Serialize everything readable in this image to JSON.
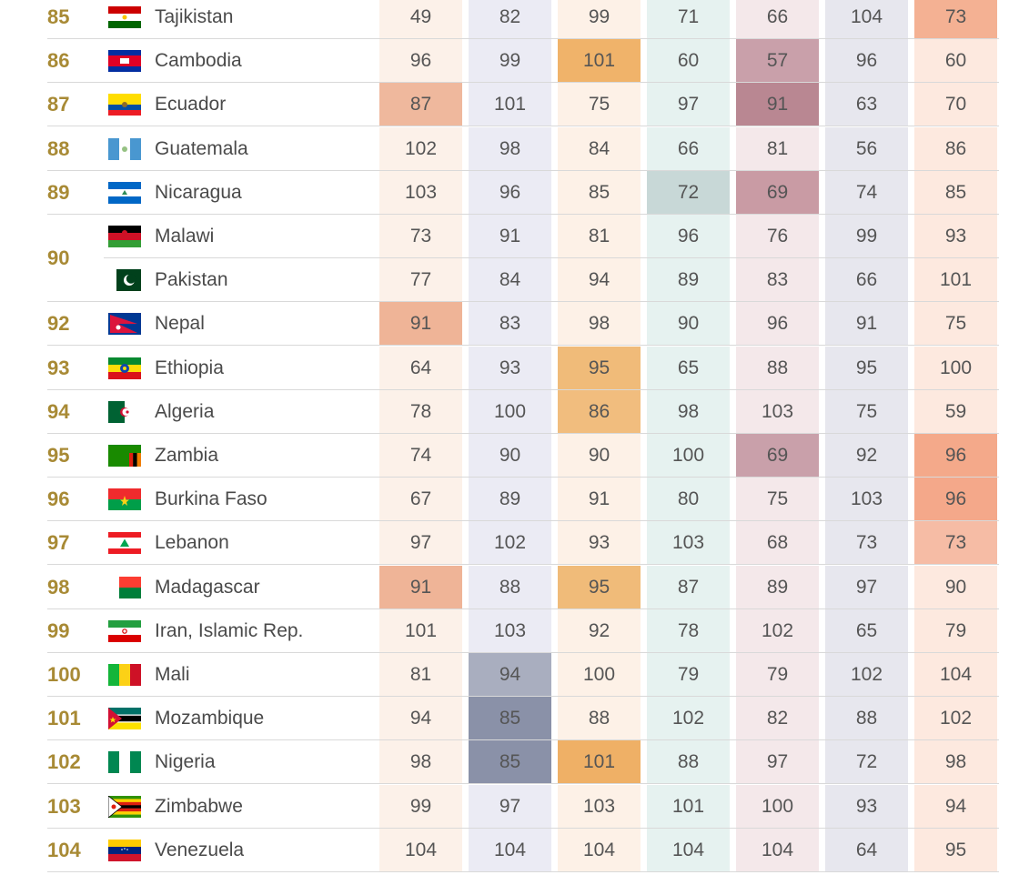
{
  "table": {
    "rows": [
      {
        "rank": "85",
        "country": "Tajikistan",
        "flag": "tajikistan-flag-icon",
        "values": [
          "49",
          "82",
          "99",
          "71",
          "66",
          "104",
          "73"
        ]
      },
      {
        "rank": "86",
        "country": "Cambodia",
        "flag": "cambodia-flag-icon",
        "values": [
          "96",
          "99",
          "101",
          "60",
          "57",
          "96",
          "60"
        ]
      },
      {
        "rank": "87",
        "country": "Ecuador",
        "flag": "ecuador-flag-icon",
        "values": [
          "87",
          "101",
          "75",
          "97",
          "91",
          "63",
          "70"
        ]
      },
      {
        "rank": "88",
        "country": "Guatemala",
        "flag": "guatemala-flag-icon",
        "values": [
          "102",
          "98",
          "84",
          "66",
          "81",
          "56",
          "86"
        ]
      },
      {
        "rank": "89",
        "country": "Nicaragua",
        "flag": "nicaragua-flag-icon",
        "values": [
          "103",
          "96",
          "85",
          "72",
          "69",
          "74",
          "85"
        ]
      },
      {
        "rank": "90",
        "country": "Malawi",
        "flag": "malawi-flag-icon",
        "values": [
          "73",
          "91",
          "81",
          "96",
          "76",
          "99",
          "93"
        ]
      },
      {
        "rank": "",
        "country": "Pakistan",
        "flag": "pakistan-flag-icon",
        "values": [
          "77",
          "84",
          "94",
          "89",
          "83",
          "66",
          "101"
        ]
      },
      {
        "rank": "92",
        "country": "Nepal",
        "flag": "nepal-flag-icon",
        "values": [
          "91",
          "83",
          "98",
          "90",
          "96",
          "91",
          "75"
        ]
      },
      {
        "rank": "93",
        "country": "Ethiopia",
        "flag": "ethiopia-flag-icon",
        "values": [
          "64",
          "93",
          "95",
          "65",
          "88",
          "95",
          "100"
        ]
      },
      {
        "rank": "94",
        "country": "Algeria",
        "flag": "algeria-flag-icon",
        "values": [
          "78",
          "100",
          "86",
          "98",
          "103",
          "75",
          "59"
        ]
      },
      {
        "rank": "95",
        "country": "Zambia",
        "flag": "zambia-flag-icon",
        "values": [
          "74",
          "90",
          "90",
          "100",
          "69",
          "92",
          "96"
        ]
      },
      {
        "rank": "96",
        "country": "Burkina Faso",
        "flag": "burkina-faso-flag-icon",
        "values": [
          "67",
          "89",
          "91",
          "80",
          "75",
          "103",
          "96"
        ]
      },
      {
        "rank": "97",
        "country": "Lebanon",
        "flag": "lebanon-flag-icon",
        "values": [
          "97",
          "102",
          "93",
          "103",
          "68",
          "73",
          "73"
        ]
      },
      {
        "rank": "98",
        "country": "Madagascar",
        "flag": "madagascar-flag-icon",
        "values": [
          "91",
          "88",
          "95",
          "87",
          "89",
          "97",
          "90"
        ]
      },
      {
        "rank": "99",
        "country": "Iran, Islamic Rep.",
        "flag": "iran-flag-icon",
        "values": [
          "101",
          "103",
          "92",
          "78",
          "102",
          "65",
          "79"
        ]
      },
      {
        "rank": "100",
        "country": "Mali",
        "flag": "mali-flag-icon",
        "values": [
          "81",
          "94",
          "100",
          "79",
          "79",
          "102",
          "104"
        ]
      },
      {
        "rank": "101",
        "country": "Mozambique",
        "flag": "mozambique-flag-icon",
        "values": [
          "94",
          "85",
          "88",
          "102",
          "82",
          "88",
          "102"
        ]
      },
      {
        "rank": "102",
        "country": "Nigeria",
        "flag": "nigeria-flag-icon",
        "values": [
          "98",
          "85",
          "101",
          "88",
          "97",
          "72",
          "98"
        ]
      },
      {
        "rank": "103",
        "country": "Zimbabwe",
        "flag": "zimbabwe-flag-icon",
        "values": [
          "99",
          "97",
          "103",
          "101",
          "100",
          "93",
          "94"
        ]
      },
      {
        "rank": "104",
        "country": "Venezuela",
        "flag": "venezuela-flag-icon",
        "values": [
          "104",
          "104",
          "104",
          "104",
          "104",
          "64",
          "95"
        ]
      }
    ],
    "column_colors": [
      "#fcf1e9",
      "#ebebf4",
      "#fdf1e7",
      "#e6f2f0",
      "#f4e8ea",
      "#e7e7ee",
      "#fde9df"
    ],
    "highlights": [
      {
        "row": 0,
        "col": 6,
        "color": "#f4b193"
      },
      {
        "row": 1,
        "col": 2,
        "color": "#f0b36a"
      },
      {
        "row": 1,
        "col": 4,
        "color": "#c9a0aa"
      },
      {
        "row": 2,
        "col": 0,
        "color": "#efb89d"
      },
      {
        "row": 2,
        "col": 4,
        "color": "#b98792"
      },
      {
        "row": 4,
        "col": 3,
        "color": "#c8d8d7"
      },
      {
        "row": 4,
        "col": 4,
        "color": "#c99ba4"
      },
      {
        "row": 7,
        "col": 0,
        "color": "#efb497"
      },
      {
        "row": 8,
        "col": 2,
        "color": "#f0bb79"
      },
      {
        "row": 9,
        "col": 2,
        "color": "#f1bd7e"
      },
      {
        "row": 10,
        "col": 4,
        "color": "#c9a0aa"
      },
      {
        "row": 10,
        "col": 6,
        "color": "#f4a98a"
      },
      {
        "row": 11,
        "col": 6,
        "color": "#f4a88a"
      },
      {
        "row": 12,
        "col": 6,
        "color": "#f6bca5"
      },
      {
        "row": 13,
        "col": 0,
        "color": "#efb497"
      },
      {
        "row": 13,
        "col": 2,
        "color": "#f0bb79"
      },
      {
        "row": 15,
        "col": 1,
        "color": "#a9aebf"
      },
      {
        "row": 16,
        "col": 1,
        "color": "#8a91a8"
      },
      {
        "row": 17,
        "col": 1,
        "color": "#8a91a8"
      },
      {
        "row": 17,
        "col": 2,
        "color": "#efb066"
      }
    ]
  }
}
